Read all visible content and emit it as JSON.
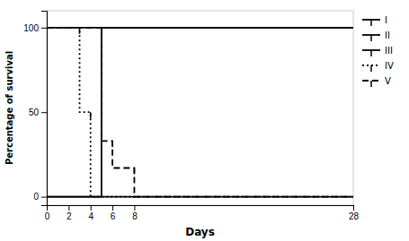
{
  "chart_data": {
    "type": "line",
    "xlabel": "Days",
    "ylabel": "Percentage of survival",
    "xlim": [
      0,
      28
    ],
    "ylim": [
      -5,
      110
    ],
    "xticks": [
      0,
      2,
      4,
      6,
      8,
      28
    ],
    "yticks": [
      0,
      50,
      100
    ],
    "legend": "right",
    "series": [
      {
        "name": "I",
        "color": "#000000",
        "line_style": "solid",
        "marker": "tickdown",
        "x": [
          0,
          28
        ],
        "values": [
          100,
          100
        ],
        "marker_x": [],
        "marker_y": []
      },
      {
        "name": "II",
        "color": "#000000",
        "line_style": "solid",
        "marker": "tickdown",
        "x": [
          0,
          28
        ],
        "values": [
          0,
          0
        ],
        "marker_x": [],
        "marker_y": []
      },
      {
        "name": "III",
        "color": "#000000",
        "line_style": "solid",
        "marker": "tickdown",
        "x": [
          0,
          5,
          5,
          28
        ],
        "values": [
          0,
          0,
          100,
          100
        ],
        "marker_x": [],
        "marker_y": []
      },
      {
        "name": "IV",
        "color": "#000000",
        "line_style": "dotted",
        "marker": "tickdown",
        "x": [
          0,
          3,
          3,
          4,
          4,
          28
        ],
        "values": [
          100,
          100,
          50,
          50,
          0,
          0
        ],
        "marker_x": [
          3,
          4
        ],
        "marker_y": [
          100,
          50
        ]
      },
      {
        "name": "V",
        "color": "#000000",
        "line_style": "dashed",
        "marker": "tickdown",
        "x": [
          0,
          5,
          5,
          6,
          6,
          8,
          8,
          28
        ],
        "values": [
          100,
          100,
          33,
          33,
          17,
          17,
          0,
          0
        ],
        "marker_x": [
          5,
          6,
          8
        ],
        "marker_y": [
          100,
          33,
          17
        ]
      }
    ]
  }
}
